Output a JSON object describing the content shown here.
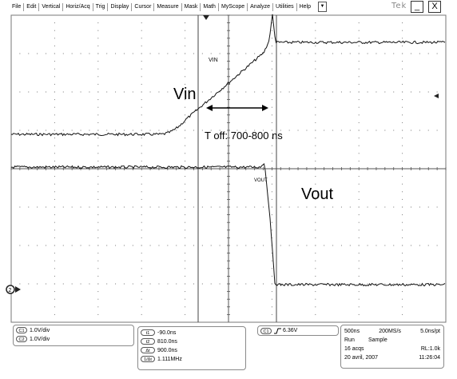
{
  "menu": {
    "items": [
      "File",
      "Edit",
      "Vertical",
      "Horiz/Acq",
      "Trig",
      "Display",
      "Cursor",
      "Measure",
      "Mask",
      "Math",
      "MyScope",
      "Analyze",
      "Utilities",
      "Help"
    ],
    "dropdown_icon": "chevron-down-icon",
    "logo_text": "Tek",
    "minimize_label": "_",
    "close_label": "X"
  },
  "screen": {
    "label_vin_small": "VIN",
    "label_vout_small": "VOUT",
    "annotation_vin": "Vin",
    "annotation_vout": "Vout",
    "annotation_toff": "T off: 700-800 ns",
    "ground_marker": "2",
    "trigger_level_marker": "triangle-left-icon",
    "trigger_position_marker": "triangle-down-icon"
  },
  "channels": [
    {
      "label": "C1",
      "scale": "1.0V/div"
    },
    {
      "label": "C2",
      "scale": "1.0V/div"
    }
  ],
  "cursors": [
    {
      "label": "t1",
      "value": "-90.0ns"
    },
    {
      "label": "t2",
      "value": "810.0ns"
    },
    {
      "label": "Δt",
      "value": "900.0ns"
    },
    {
      "label": "1/Δt",
      "value": "1.111MHz"
    }
  ],
  "trigger": {
    "channel": "C1",
    "slope_icon": "rising-edge-icon",
    "level": "6.36V"
  },
  "acquisition": {
    "timebase": "500ns",
    "sample_rate": "200MS/s",
    "resolution": "5.0ns/pt",
    "state": "Run",
    "mode": "Sample",
    "acqs": "16 acqs",
    "record_length": "RL:1.0k",
    "date": "20 avril, 2007",
    "time": "11:26:04"
  }
}
